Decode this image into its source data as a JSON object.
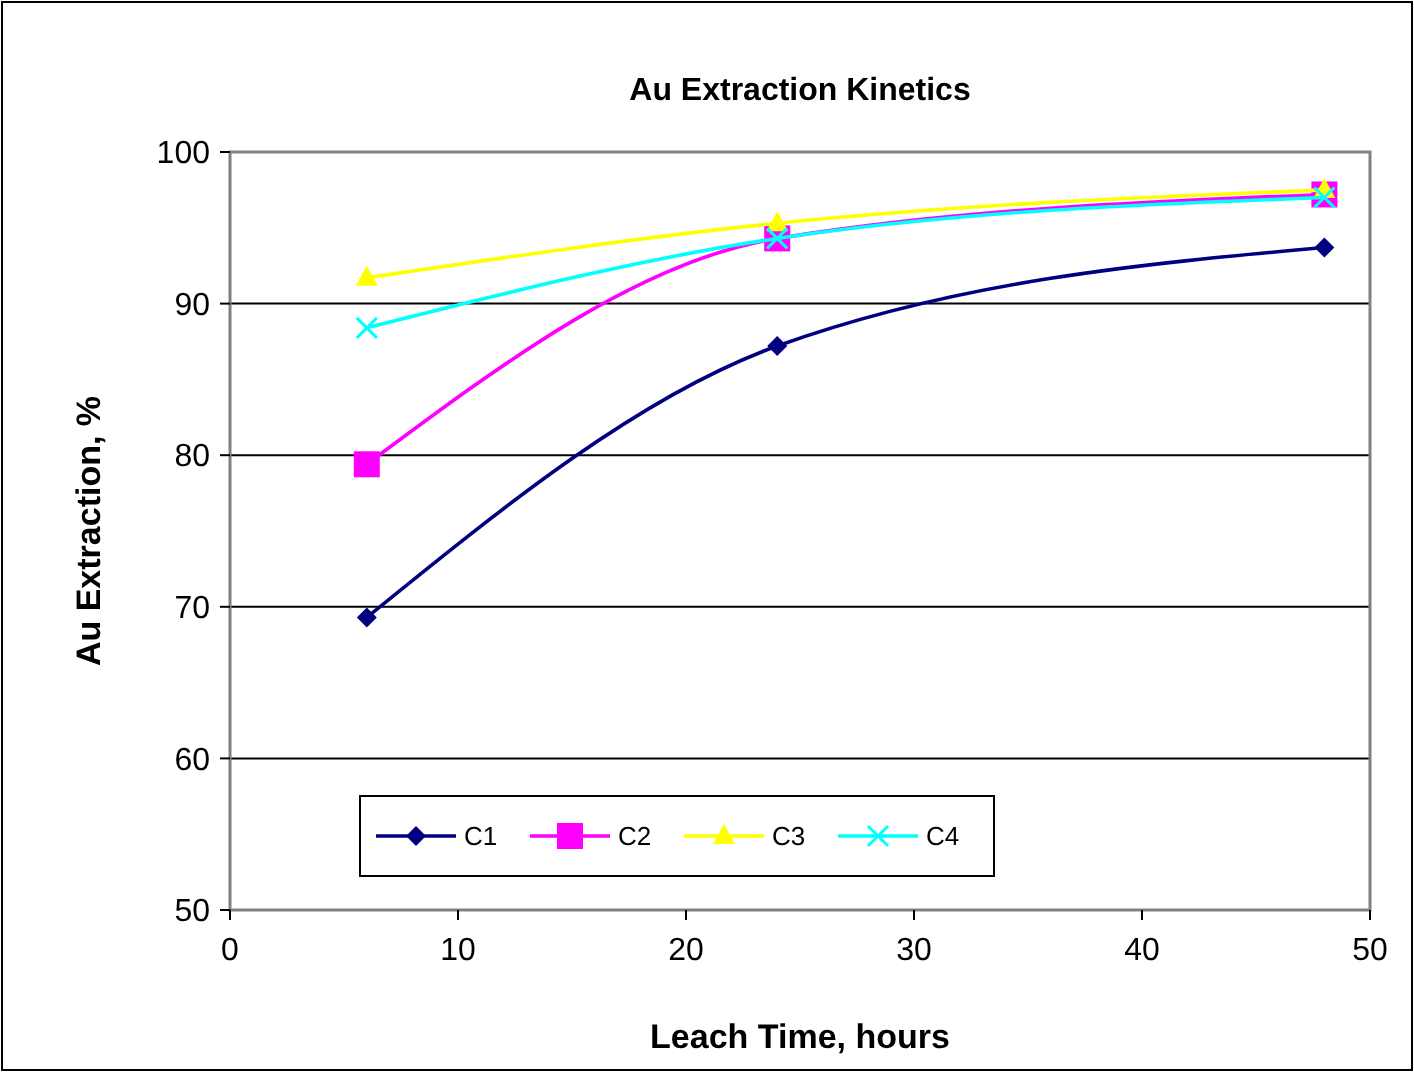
{
  "chart_data": {
    "type": "line",
    "title": "Au Extraction Kinetics",
    "xlabel": "Leach Time, hours",
    "ylabel": "Au Extraction, %",
    "x": [
      6,
      24,
      48
    ],
    "series": [
      {
        "name": "C1",
        "color": "#000080",
        "values": [
          69.3,
          87.2,
          93.7
        ],
        "marker": "diamond"
      },
      {
        "name": "C2",
        "color": "#ff00ff",
        "values": [
          79.4,
          94.3,
          97.2
        ],
        "marker": "square"
      },
      {
        "name": "C3",
        "color": "#ffff00",
        "values": [
          91.7,
          95.3,
          97.5
        ],
        "marker": "triangle"
      },
      {
        "name": "C4",
        "color": "#00ffff",
        "values": [
          88.4,
          94.3,
          97.0
        ],
        "marker": "cross"
      }
    ],
    "xlim": [
      0,
      50
    ],
    "xticks": [
      0,
      10,
      20,
      30,
      40,
      50
    ],
    "ylim": [
      50,
      100
    ],
    "yticks": [
      50,
      60,
      70,
      80,
      90,
      100
    ],
    "grid": "y",
    "legend": "bottom left",
    "line_style": "solid"
  }
}
